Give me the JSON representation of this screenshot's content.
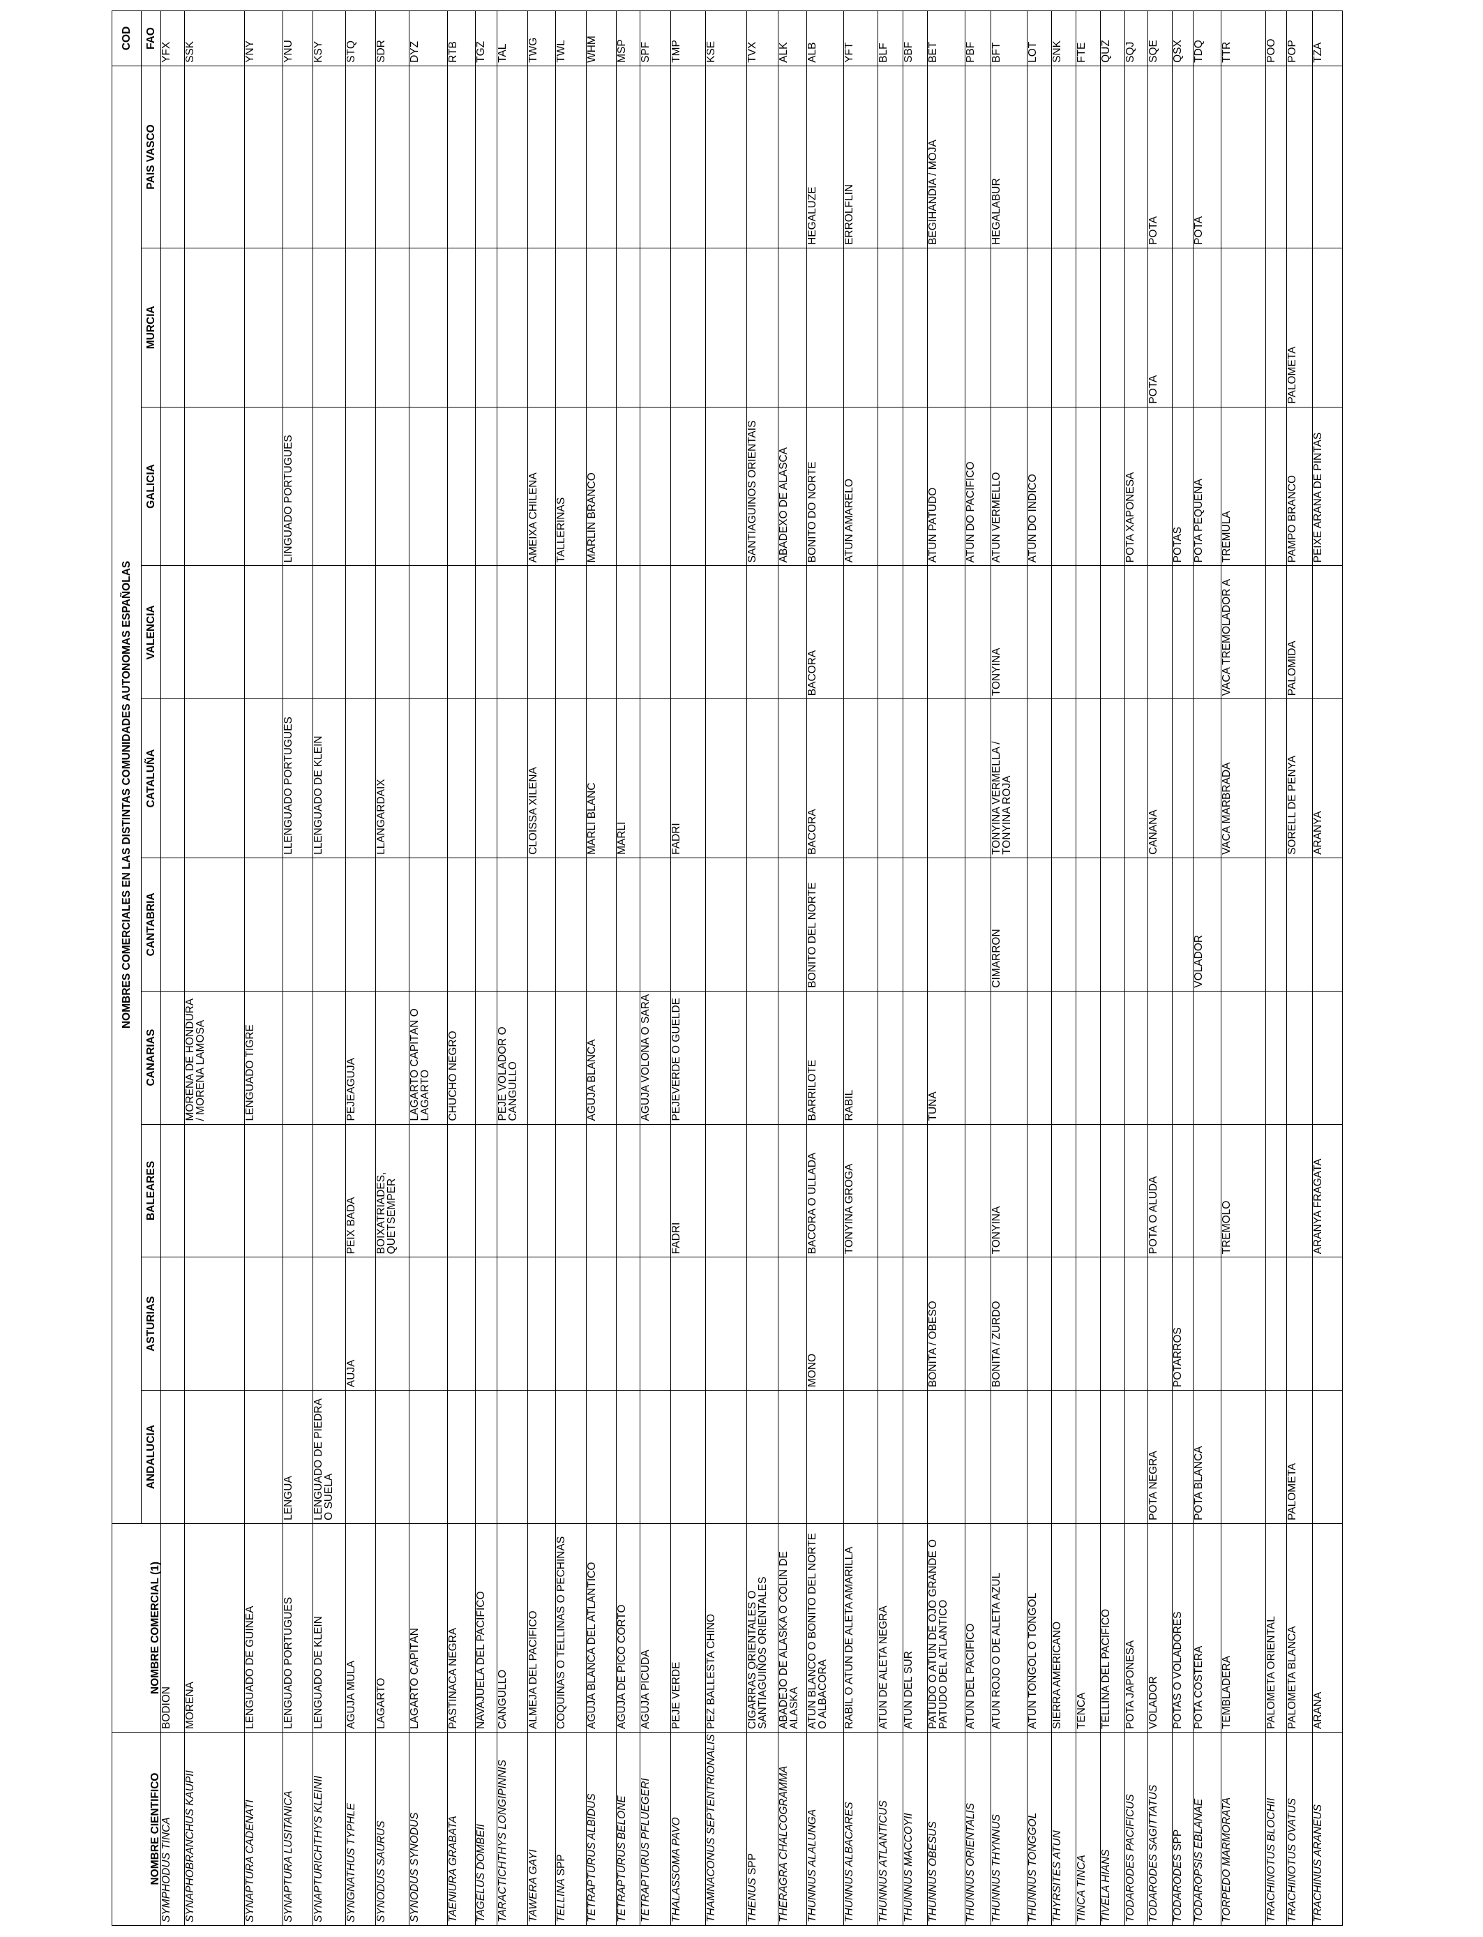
{
  "header": {
    "sci": "NOMBRE CIENTIFICO",
    "common": "NOMBRE COMERCIAL (1)",
    "group": "NOMBRES COMERCIALES EN LAS DISTINTAS COMUNIDADES AUTONOMAS ESPAÑOLAS",
    "cod": "COD",
    "fao": "FAO",
    "regions": [
      "ANDALUCIA",
      "ASTURIAS",
      "BALEARES",
      "CANARIAS",
      "CANTABRIA",
      "CATALUÑA",
      "VALENCIA",
      "GALICIA",
      "MURCIA",
      "PAIS VASCO"
    ]
  },
  "rows": [
    {
      "sci": "Symphodus tinca",
      "common": "BODIÓN",
      "r": [
        "",
        "",
        "",
        "",
        "",
        "",
        "",
        "",
        "",
        ""
      ],
      "fao": "YFX"
    },
    {
      "sci": "Synaphobranchus kaupii",
      "common": "MORENA",
      "r": [
        "",
        "",
        "",
        "MORENA DE HONDURA / MORENA LAMOSA",
        "",
        "",
        "",
        "",
        "",
        ""
      ],
      "fao": "SSK"
    },
    {
      "sci": "Synaptura cadenati",
      "common": "LENGUADO DE GUINEA",
      "r": [
        "",
        "",
        "",
        "LENGUADO TIGRE",
        "",
        "",
        "",
        "",
        "",
        ""
      ],
      "fao": "YNY"
    },
    {
      "sci": "Synaptura lusitanica",
      "common": "LENGUADO PORTUGUES",
      "r": [
        "LENGUA",
        "",
        "",
        "",
        "",
        "LLENGUADO PORTUGUÉS",
        "",
        "LINGUADO PORTUGUÉS",
        "",
        ""
      ],
      "fao": "YNU"
    },
    {
      "sci": "Synapturichthys kleinii",
      "common": "LENGUADO DE KLEIN",
      "r": [
        "LENGUADO DE PIEDRA O SUELA",
        "",
        "",
        "",
        "",
        "LLENGUADO DE KLEIN",
        "",
        "",
        "",
        ""
      ],
      "fao": "KSY"
    },
    {
      "sci": "Syngnathus typhle",
      "common": "AGUJA MULA",
      "r": [
        "",
        "AÚJA",
        "PEIX BADA",
        "PEJEAGUJA",
        "",
        "",
        "",
        "",
        "",
        ""
      ],
      "fao": "STQ"
    },
    {
      "sci": "Synodus saurus",
      "common": "LAGARTO",
      "r": [
        "",
        "",
        "BOIXATRIADES, QUETSEMPER",
        "",
        "",
        "LLANGARDAIX",
        "",
        "",
        "",
        ""
      ],
      "fao": "SDR"
    },
    {
      "sci": "Synodus synodus",
      "common": "LAGARTO CAPITÁN",
      "r": [
        "",
        "",
        "",
        "LAGARTO CAPITÁN O LAGARTO",
        "",
        "",
        "",
        "",
        "",
        ""
      ],
      "fao": "DYZ"
    },
    {
      "sci": "Taeniura grabata",
      "common": "PASTINACA NEGRA",
      "r": [
        "",
        "",
        "",
        "CHUCHO NEGRO",
        "",
        "",
        "",
        "",
        "",
        ""
      ],
      "fao": "RTB"
    },
    {
      "sci": "Tagelus dombeii",
      "common": "NAVAJUELA DEL PACÍFICO",
      "r": [
        "",
        "",
        "",
        "",
        "",
        "",
        "",
        "",
        "",
        ""
      ],
      "fao": "TGZ"
    },
    {
      "sci": "Taractichthys longipinnis",
      "common": "CANGULLO",
      "r": [
        "",
        "",
        "",
        "PEJE VOLADOR O CANGULLO",
        "",
        "",
        "",
        "",
        "",
        ""
      ],
      "fao": "TAL"
    },
    {
      "sci": "Tawera gayi",
      "common": "ALMEJA DEL PACÍFICO",
      "r": [
        "",
        "",
        "",
        "",
        "",
        "CLOÏSSA XILENA",
        "",
        "AMEIXA CHILENA",
        "",
        ""
      ],
      "fao": "TWG"
    },
    {
      "sci": "Tellina",
      "spp": "spp",
      "common": "COQUINAS O TELLINAS O PECHINAS",
      "r": [
        "",
        "",
        "",
        "",
        "",
        "",
        "",
        "TALLERINAS",
        "",
        ""
      ],
      "fao": "TWL"
    },
    {
      "sci": "Tetrapturus albidus",
      "common": "AGUJA BLANCA DEL ATLANTICO",
      "r": [
        "",
        "",
        "",
        "AGUJA BLANCA",
        "",
        "MARLÍ BLANC",
        "",
        "MARLÍN BRANCO",
        "",
        ""
      ],
      "fao": "WHM"
    },
    {
      "sci": "Tetrapturus belone",
      "common": "AGUJA DE PICO CORTO",
      "r": [
        "",
        "",
        "",
        "",
        "",
        "MARLÍ",
        "",
        "",
        "",
        ""
      ],
      "fao": "MSP"
    },
    {
      "sci": "Tetrapturus pfluegeri",
      "common": "AGUJA PICUDA",
      "r": [
        "",
        "",
        "",
        "AGUJA VOLONA O SARA",
        "",
        "",
        "",
        "",
        "",
        ""
      ],
      "fao": "SPF"
    },
    {
      "sci": "Thalassoma pavo",
      "common": "PEJE VERDE",
      "r": [
        "",
        "",
        "FADRÍ",
        "PEJEVERDE O GUELDE",
        "",
        "FADRÍ",
        "",
        "",
        "",
        ""
      ],
      "fao": "TMP"
    },
    {
      "sci": "Thamnaconus septentrionalis",
      "common": "PEZ BALLESTA CHINO",
      "r": [
        "",
        "",
        "",
        "",
        "",
        "",
        "",
        "",
        "",
        ""
      ],
      "fao": "KSE"
    },
    {
      "sci": "Thenus",
      "spp": "spp",
      "common": "CIGARRAS ORIENTALES O SANTIAGUIÑOS ORIENTALES",
      "r": [
        "",
        "",
        "",
        "",
        "",
        "",
        "",
        "SANTIAGUIÑOS ORIENTAIS",
        "",
        ""
      ],
      "fao": "TVX"
    },
    {
      "sci": "Theragra chalcogramma",
      "common": "ABADEJO DE ALASKA O COLIN DE ALASKA",
      "r": [
        "",
        "",
        "",
        "",
        "",
        "",
        "",
        "ABADEXO DE ALASCA",
        "",
        ""
      ],
      "fao": "ALK"
    },
    {
      "sci": "Thunnus  alalunga",
      "common": "ATUN BLANCO O BONITO DEL NORTE O ALBACORA",
      "r": [
        "",
        "MONO",
        "BACORA O ULLADA",
        "BARRILOTE",
        "BONITO DEL NORTE",
        "BACORA",
        "BACORA",
        "BONITO DO NORTE",
        "",
        "HEGALUZE"
      ],
      "fao": "ALB"
    },
    {
      "sci": "Thunnus albacares",
      "common": "RABIL O ATUN  DE ALETA AMARILLA",
      "r": [
        "",
        "",
        "TONYINA GROGA",
        "RABIL",
        "",
        "",
        "",
        "ATÚN AMARELO",
        "",
        "ERROLFLIN"
      ],
      "fao": "YFT"
    },
    {
      "sci": "Thunnus atlanticus",
      "common": "ATÚN DE ALETA NEGRA",
      "r": [
        "",
        "",
        "",
        "",
        "",
        "",
        "",
        "",
        "",
        ""
      ],
      "fao": "BLF"
    },
    {
      "sci": "Thunnus maccoyii",
      "common": "ATÚN DEL SUR",
      "r": [
        "",
        "",
        "",
        "",
        "",
        "",
        "",
        "",
        "",
        ""
      ],
      "fao": "SBF"
    },
    {
      "sci": "Thunnus obesus",
      "common": "PATUDO O ATUN DE OJO GRANDE O PATUDO DEL ATLANTICO",
      "r": [
        "",
        "BONITA / OBESO",
        "",
        "TUNA",
        "",
        "",
        "",
        "ATÚN PATUDO",
        "",
        "BEGIHANDIA / MOJA"
      ],
      "fao": "BET"
    },
    {
      "sci": "Thunnus orientalis",
      "common": "ATÚN DEL PACÍFICO",
      "r": [
        "",
        "",
        "",
        "",
        "",
        "",
        "",
        "ATÚN DO PACÍFICO",
        "",
        ""
      ],
      "fao": "PBF"
    },
    {
      "sci": "Thunnus thynnus",
      "common": "ATUN ROJO O DE ALETA AZUL",
      "r": [
        "",
        "BONITA / ZURDO",
        "TONYINA",
        "",
        "CIMARRON",
        "TONYINA VERMELLA / TONYINA ROJA",
        "TONYINA",
        "ATÚN VERMELLO",
        "",
        "HEGALABUR"
      ],
      "fao": "BFT"
    },
    {
      "sci": "Thunnus tonggol",
      "common": "ATUN TONGOL O TONGOL",
      "r": [
        "",
        "",
        "",
        "",
        "",
        "",
        "",
        "ATÚN DO ÍNDICO",
        "",
        ""
      ],
      "fao": "LOT"
    },
    {
      "sci": "Thyrsites atun",
      "common": "SIERRA AMERICANO",
      "r": [
        "",
        "",
        "",
        "",
        "",
        "",
        "",
        "",
        "",
        ""
      ],
      "fao": "SNK"
    },
    {
      "sci": "Tinca tinca",
      "common": "TENCA",
      "r": [
        "",
        "",
        "",
        "",
        "",
        "",
        "",
        "",
        "",
        ""
      ],
      "fao": "FTE"
    },
    {
      "sci": "Tivela hians",
      "common": "TELLINA DEL PACÍFICO",
      "r": [
        "",
        "",
        "",
        "",
        "",
        "",
        "",
        "",
        "",
        ""
      ],
      "fao": "QUZ"
    },
    {
      "sci": "Todarodes pacificus",
      "common": "POTA JAPONESA",
      "r": [
        "",
        "",
        "",
        "",
        "",
        "",
        "",
        "POTA XAPONESA",
        "",
        ""
      ],
      "fao": "SQJ"
    },
    {
      "sci": "Todarodes sagittatus",
      "common": "VOLADOR",
      "r": [
        "POTA NEGRA",
        "",
        "POTA O ALUDA",
        "",
        "",
        "CANANA",
        "",
        "",
        "POTA",
        "POTA"
      ],
      "fao": "SQE"
    },
    {
      "sci": "Todarodes",
      "spp": "spp",
      "common": "POTAS O VOLADORES",
      "r": [
        "",
        "POTARROS",
        "",
        "",
        "",
        "",
        "",
        "POTAS",
        "",
        ""
      ],
      "fao": "QSX"
    },
    {
      "sci": "Todaropsis eblanae",
      "common": "POTA COSTERA",
      "r": [
        "POTA BLANCA",
        "",
        "",
        "",
        "VOLADOR",
        "",
        "",
        "POTA PEQUENA",
        "",
        "POTA"
      ],
      "fao": "TDQ"
    },
    {
      "sci": "Torpedo marmorata",
      "common": "TEMBLADERA",
      "r": [
        "",
        "",
        "TREMOLÓ",
        "",
        "",
        "VACA MARBRADA",
        "VACA TREMOLADOR A",
        "TRÉMULA",
        "",
        ""
      ],
      "fao": "TTR"
    },
    {
      "sci": "Trachinotus blochii",
      "common": "PALOMETA ORIENTAL",
      "r": [
        "",
        "",
        "",
        "",
        "",
        "",
        "",
        "",
        "",
        ""
      ],
      "fao": "POO"
    },
    {
      "sci": "Trachinotus ovatus",
      "common": "PALOMETA BLANCA",
      "r": [
        "PALOMETA",
        "",
        "",
        "",
        "",
        "SORELL DE PENYA",
        "PALOMIDA",
        "PAMPO BRANCO",
        "PALOMETA",
        ""
      ],
      "fao": "POP"
    },
    {
      "sci": "Trachinus araneus",
      "common": "ARAÑA",
      "r": [
        "",
        "",
        "ARANYA FRAGATA",
        "",
        "",
        "ARANYA",
        "",
        "PEIXE ARAÑA DE PINTAS",
        "",
        ""
      ],
      "fao": "TZA"
    }
  ]
}
